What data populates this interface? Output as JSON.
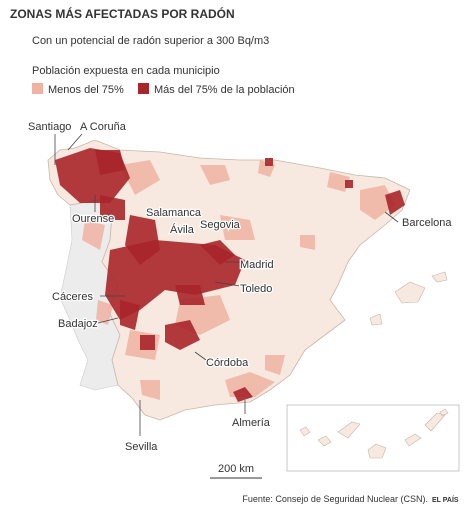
{
  "header": {
    "title": "ZONAS MÁS AFECTADAS POR RADÓN",
    "subtitle": "Con un potencial de radón superior a 300 Bq/m3"
  },
  "legend": {
    "title": "Población expuesta en cada municipio",
    "items": [
      {
        "label": "Menos del 75%",
        "color": "#f0b3a3"
      },
      {
        "label": "Más del 75% de la población",
        "color": "#a8262a"
      }
    ]
  },
  "map": {
    "cities": [
      {
        "label": "Santiago"
      },
      {
        "label": "A Coruña"
      },
      {
        "label": "Ourense"
      },
      {
        "label": "Salamanca"
      },
      {
        "label": "Ávila"
      },
      {
        "label": "Segovia"
      },
      {
        "label": "Madrid"
      },
      {
        "label": "Toledo"
      },
      {
        "label": "Cáceres"
      },
      {
        "label": "Badajoz"
      },
      {
        "label": "Córdoba"
      },
      {
        "label": "Sevilla"
      },
      {
        "label": "Almería"
      },
      {
        "label": "Barcelona"
      }
    ],
    "scale": "200 km"
  },
  "footer": {
    "source": "Fuente: Consejo de Seguridad Nuclear (CSN).",
    "brand": "EL PAÍS"
  }
}
